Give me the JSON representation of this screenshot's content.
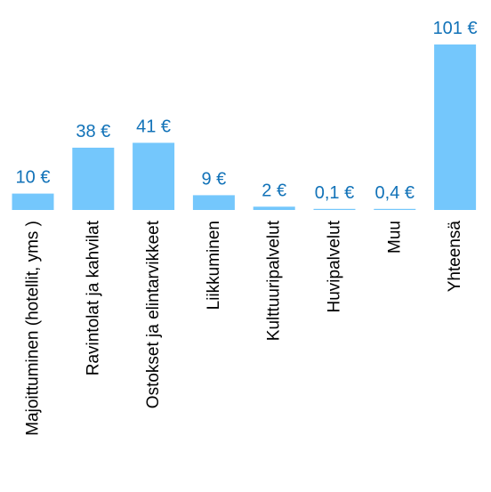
{
  "chart_data": {
    "type": "bar",
    "title": "",
    "xlabel": "",
    "ylabel": "",
    "categories": [
      "Majoittuminen (hotellit, yms )",
      "Ravintolat ja kahvilat",
      "Ostokset ja elintarvikkeet",
      "Liikkuminen",
      "Kulttuuripalvelut",
      "Huvipalvelut",
      "Muu",
      "Yhteensä"
    ],
    "values": [
      10,
      38,
      41,
      9,
      2,
      0.1,
      0.4,
      101
    ],
    "value_labels": [
      "10 €",
      "38 €",
      "41 €",
      "9 €",
      "2 €",
      "0,1 €",
      "0,4 €",
      "101 €"
    ],
    "ylim": [
      0,
      101
    ],
    "grid": false,
    "legend": "none",
    "colors": {
      "bar": "#74C7FC",
      "value_text": "#1172B8",
      "category_text": "#000000",
      "background": "#FFFFFF"
    }
  }
}
